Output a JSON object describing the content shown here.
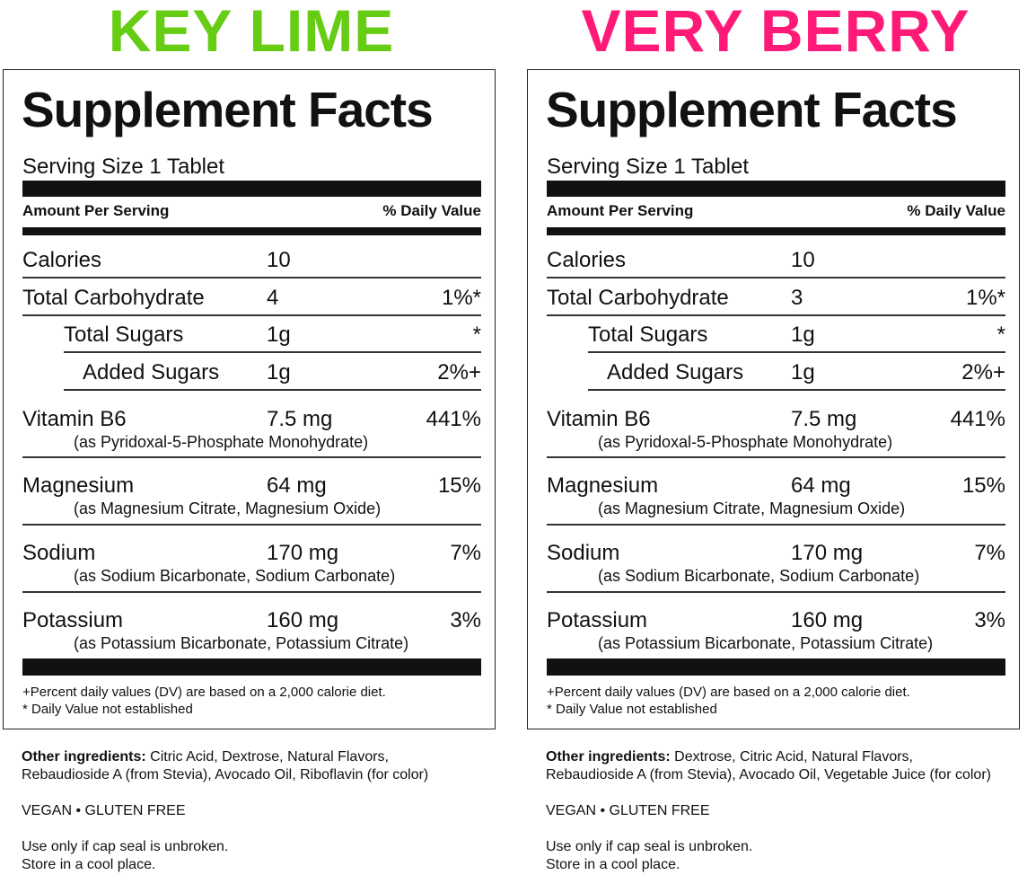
{
  "colors": {
    "key_lime": "#66cc14",
    "very_berry": "#ff1a78"
  },
  "panels": [
    {
      "flavor": "KEY LIME",
      "facts_title": "Supplement Facts",
      "serving_size": "Serving Size 1 Tablet",
      "amount_per_serving": "Amount Per Serving",
      "daily_value_header": "% Daily Value",
      "rows": [
        {
          "name": "Calories",
          "amount": "10",
          "dv": ""
        },
        {
          "name": "Total Carbohydrate",
          "amount": "4",
          "dv": "1%*"
        },
        {
          "name": "Total Sugars",
          "amount": "1g",
          "dv": "*"
        },
        {
          "name": "Added Sugars",
          "amount": "1g",
          "dv": "2%+"
        },
        {
          "name": "Vitamin B6",
          "amount": "7.5 mg",
          "dv": "441%",
          "sub": "(as Pyridoxal-5-Phosphate Monohydrate)"
        },
        {
          "name": "Magnesium",
          "amount": "64 mg",
          "dv": "15%",
          "sub": "(as Magnesium Citrate, Magnesium Oxide)"
        },
        {
          "name": "Sodium",
          "amount": "170 mg",
          "dv": "7%",
          "sub": "(as Sodium Bicarbonate, Sodium Carbonate)"
        },
        {
          "name": "Potassium",
          "amount": "160 mg",
          "dv": "3%",
          "sub": "(as Potassium Bicarbonate, Potassium Citrate)"
        }
      ],
      "footnote_1": "+Percent daily values (DV) are based on a 2,000 calorie diet.",
      "footnote_2": "* Daily Value not established",
      "other_label": "Other ingredients:",
      "other_line1": " Citric Acid, Dextrose, Natural Flavors,",
      "other_line2": "Rebaudioside A (from Stevia), Avocado Oil, Riboflavin (for color)",
      "tags": "VEGAN • GLUTEN FREE",
      "use_line1": "Use only if cap seal is unbroken.",
      "use_line2": "Store in a cool place."
    },
    {
      "flavor": "VERY BERRY",
      "facts_title": "Supplement Facts",
      "serving_size": "Serving Size 1 Tablet",
      "amount_per_serving": "Amount Per Serving",
      "daily_value_header": "% Daily Value",
      "rows": [
        {
          "name": "Calories",
          "amount": "10",
          "dv": ""
        },
        {
          "name": "Total Carbohydrate",
          "amount": "3",
          "dv": "1%*"
        },
        {
          "name": "Total Sugars",
          "amount": "1g",
          "dv": "*"
        },
        {
          "name": "Added Sugars",
          "amount": "1g",
          "dv": "2%+"
        },
        {
          "name": "Vitamin B6",
          "amount": "7.5 mg",
          "dv": "441%",
          "sub": "(as Pyridoxal-5-Phosphate Monohydrate)"
        },
        {
          "name": "Magnesium",
          "amount": "64 mg",
          "dv": "15%",
          "sub": "(as Magnesium Citrate, Magnesium Oxide)"
        },
        {
          "name": "Sodium",
          "amount": "170 mg",
          "dv": "7%",
          "sub": "(as Sodium Bicarbonate, Sodium Carbonate)"
        },
        {
          "name": "Potassium",
          "amount": "160 mg",
          "dv": "3%",
          "sub": "(as Potassium Bicarbonate, Potassium Citrate)"
        }
      ],
      "footnote_1": "+Percent daily values (DV) are based on a 2,000 calorie diet.",
      "footnote_2": "* Daily Value not established",
      "other_label": "Other ingredients:",
      "other_line1": " Dextrose, Citric Acid, Natural Flavors,",
      "other_line2": "Rebaudioside A (from Stevia), Avocado Oil, Vegetable Juice (for color)",
      "tags": "VEGAN • GLUTEN FREE",
      "use_line1": "Use only if cap seal is unbroken.",
      "use_line2": "Store in a cool place."
    }
  ]
}
